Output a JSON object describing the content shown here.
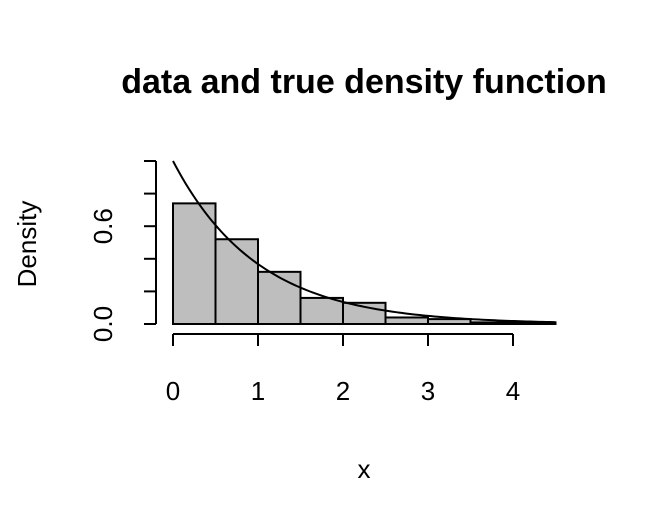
{
  "chart_data": {
    "type": "bar",
    "title": "data and true density function",
    "xlabel": "x",
    "ylabel": "Density",
    "bins": [
      {
        "x0": 0.0,
        "x1": 0.5,
        "density": 0.74
      },
      {
        "x0": 0.5,
        "x1": 1.0,
        "density": 0.52
      },
      {
        "x0": 1.0,
        "x1": 1.5,
        "density": 0.32
      },
      {
        "x0": 1.5,
        "x1": 2.0,
        "density": 0.16
      },
      {
        "x0": 2.0,
        "x1": 2.5,
        "density": 0.13
      },
      {
        "x0": 2.5,
        "x1": 3.0,
        "density": 0.04
      },
      {
        "x0": 3.0,
        "x1": 3.5,
        "density": 0.03
      },
      {
        "x0": 3.5,
        "x1": 4.0,
        "density": 0.01
      },
      {
        "x0": 4.0,
        "x1": 4.5,
        "density": 0.01
      }
    ],
    "density_curve": {
      "type": "exponential",
      "rate": 1.0,
      "x_range": [
        0,
        4.5
      ]
    },
    "xlim": [
      0,
      4.5
    ],
    "ylim": [
      0,
      1.0
    ],
    "x_ticks": [
      0,
      1,
      2,
      3,
      4
    ],
    "x_tick_labels": [
      "0",
      "1",
      "2",
      "3",
      "4"
    ],
    "y_ticks": [
      0.0,
      0.2,
      0.4,
      0.6,
      0.8,
      1.0
    ],
    "y_tick_labels": [
      "0.0",
      "",
      "",
      "0.6",
      "",
      ""
    ],
    "colors": {
      "bar_fill": "#bebebe",
      "bar_stroke": "#000000",
      "curve": "#000000"
    },
    "grid": false,
    "legend": "none"
  }
}
